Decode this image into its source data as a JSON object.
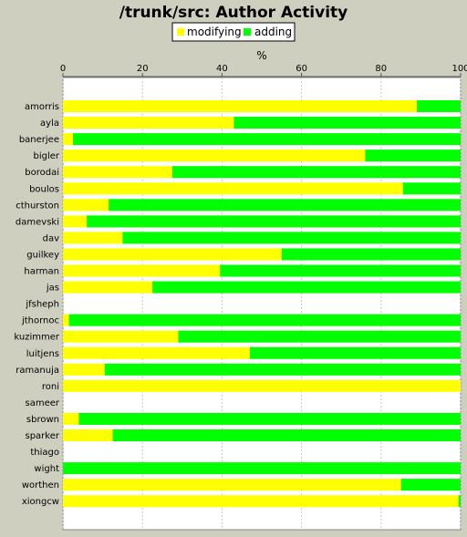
{
  "chart_data": {
    "type": "bar",
    "orientation": "horizontal",
    "stacked": true,
    "title": "/trunk/src: Author Activity",
    "xlabel": "%",
    "ylabel": "",
    "xlim": [
      0,
      100
    ],
    "xticks": [
      0,
      20,
      40,
      60,
      80,
      100
    ],
    "grid": true,
    "legend_position": "top",
    "categories": [
      "amorris",
      "ayla",
      "banerjee",
      "bigler",
      "borodai",
      "boulos",
      "cthurston",
      "damevski",
      "dav",
      "guilkey",
      "harman",
      "jas",
      "jfsheph",
      "jthornoc",
      "kuzimmer",
      "luitjens",
      "ramanuja",
      "roni",
      "sameer",
      "sbrown",
      "sparker",
      "thiago",
      "wight",
      "worthen",
      "xiongcw"
    ],
    "series": [
      {
        "name": "modifying",
        "color": "#ffff00",
        "values": [
          89,
          43,
          2.5,
          76,
          27.5,
          85.5,
          11.5,
          6,
          15,
          55,
          39.5,
          22.5,
          0,
          1.5,
          29,
          47,
          10.5,
          100,
          0,
          4,
          12.5,
          0,
          0,
          85,
          99.5
        ]
      },
      {
        "name": "adding",
        "color": "#00ff00",
        "values": [
          11,
          57,
          97.5,
          24,
          72.5,
          14.5,
          88.5,
          94,
          85,
          45,
          60.5,
          77.5,
          0,
          98.5,
          71,
          53,
          89.5,
          0,
          0,
          96,
          87.5,
          0,
          100,
          15,
          0.5
        ]
      }
    ]
  }
}
